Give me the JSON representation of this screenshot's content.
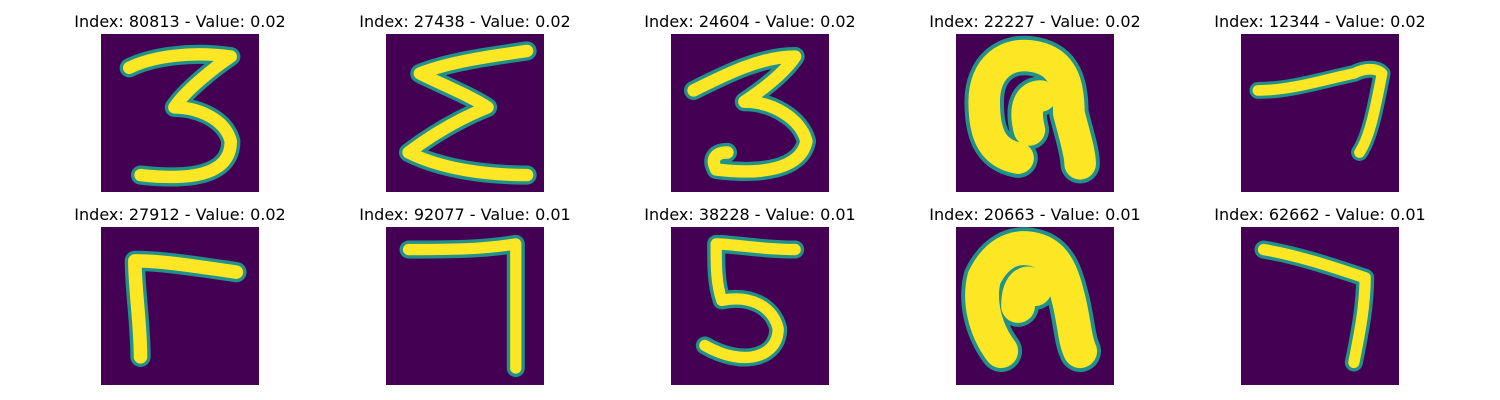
{
  "panels": [
    {
      "title": "Index: 80813 - Value: 0.02",
      "digit": "3"
    },
    {
      "title": "Index: 27438 - Value: 0.02",
      "digit": "E"
    },
    {
      "title": "Index: 24604 - Value: 0.02",
      "digit": "3"
    },
    {
      "title": "Index: 22227 - Value: 0.02",
      "digit": "n"
    },
    {
      "title": "Index: 12344 - Value: 0.02",
      "digit": "7"
    },
    {
      "title": "Index: 27912 - Value: 0.02",
      "digit": "r"
    },
    {
      "title": "Index: 92077 - Value: 0.01",
      "digit": "7"
    },
    {
      "title": "Index: 38228 - Value: 0.01",
      "digit": "5"
    },
    {
      "title": "Index: 20663 - Value: 0.01",
      "digit": "n"
    },
    {
      "title": "Index: 62662 - Value: 0.01",
      "digit": "7"
    }
  ],
  "colors": {
    "background": "#440154",
    "stroke": "#fde725",
    "edge": "#21918c"
  }
}
